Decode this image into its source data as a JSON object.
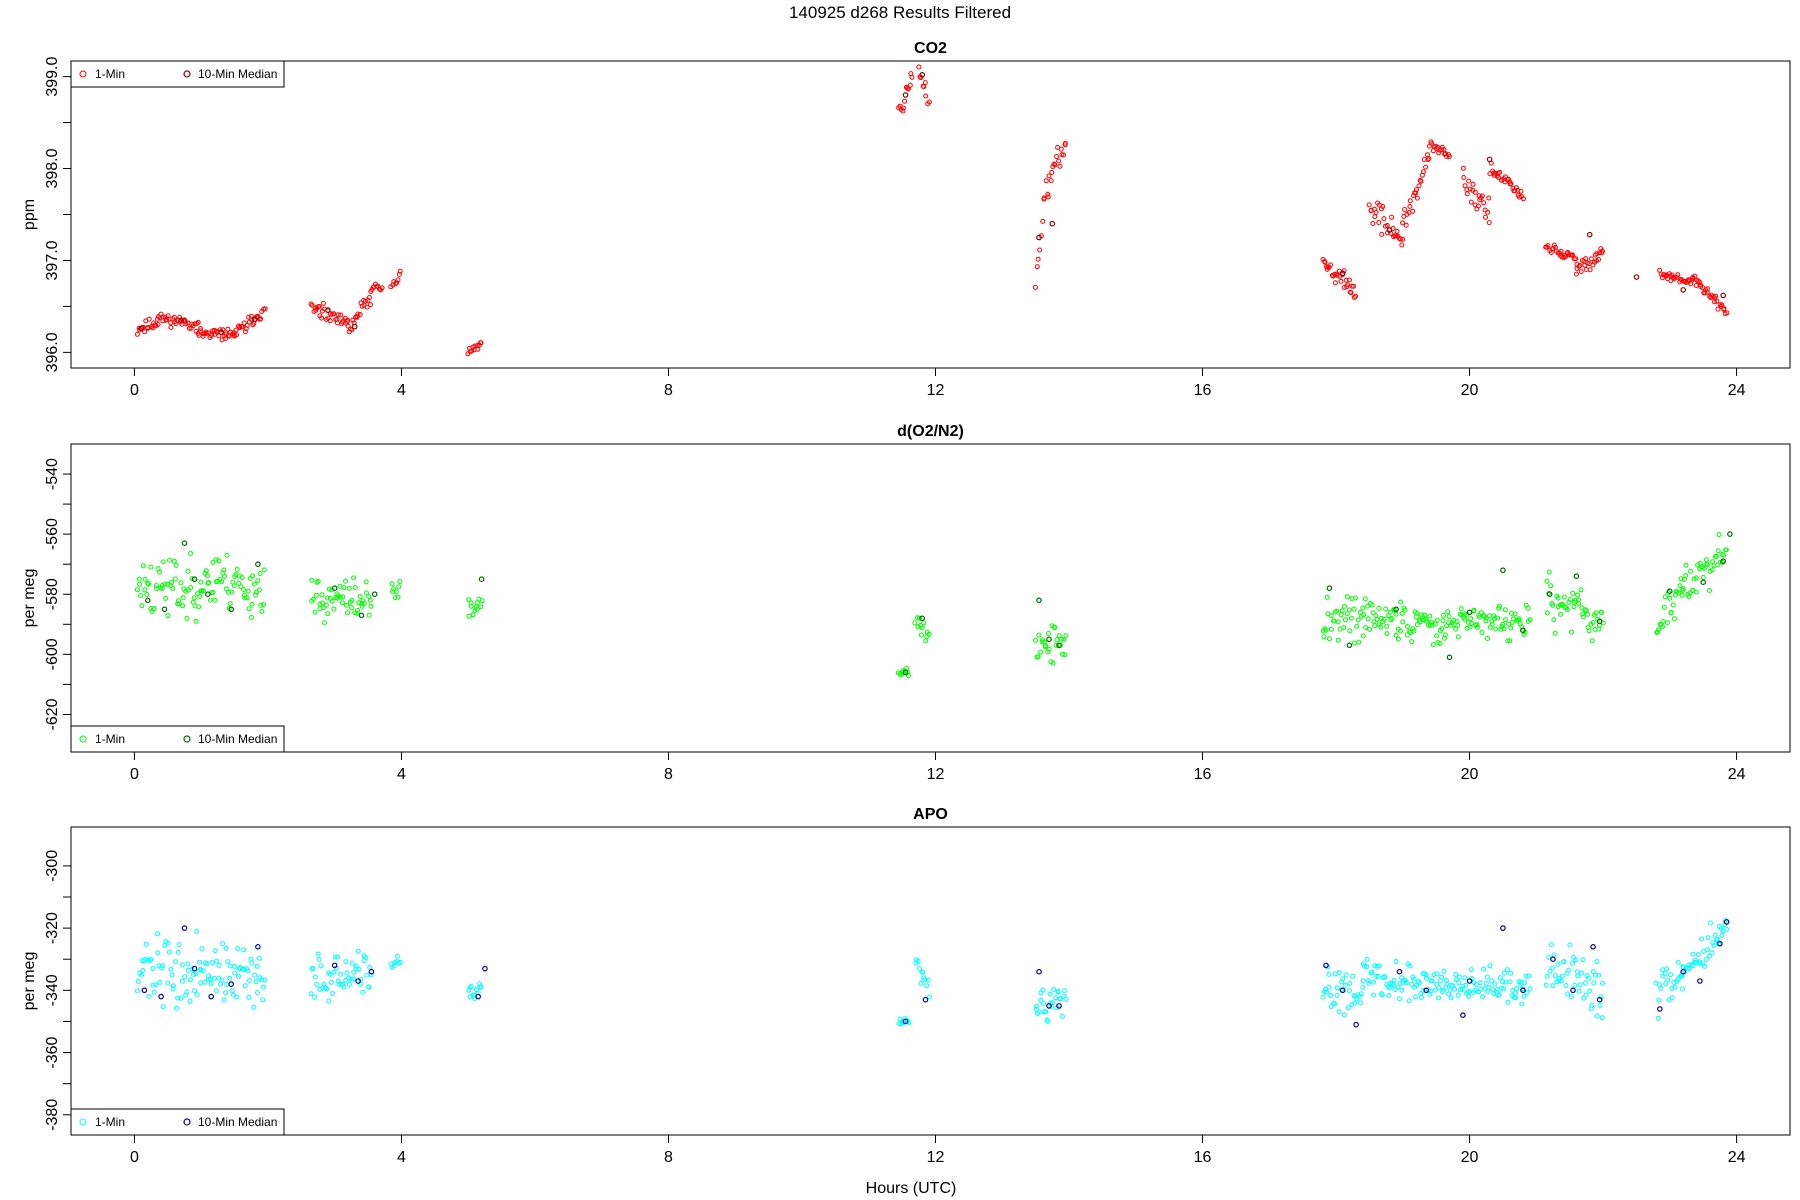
{
  "figure": {
    "title": "140925   d268   Results Filtered",
    "xlabel": "Hours (UTC)"
  },
  "chart_data": [
    {
      "type": "scatter",
      "title": "CO2",
      "ylabel": "ppm",
      "xlim": [
        -0.95,
        24.8
      ],
      "ylim": [
        395.83,
        399.17
      ],
      "xticks": [
        0,
        4,
        8,
        12,
        16,
        20,
        24
      ],
      "yticks": [
        396,
        397,
        398,
        399
      ],
      "ytick_labels": [
        "396.0",
        "397.0",
        "398.0",
        "399.0"
      ],
      "minor_yticks": [
        396.5,
        397.5,
        398.5
      ],
      "legend_position": "top-left",
      "legend": [
        "1-Min",
        "10-Min Median"
      ],
      "colors": {
        "one_min": "#ff0000",
        "median": "#8b0000"
      },
      "series": [
        {
          "name": "1-Min",
          "seed": 11,
          "segments": [
            [
              0.05,
              0.35,
              396.25,
              396.32,
              0.1
            ],
            [
              0.35,
              0.95,
              396.38,
              396.3,
              0.09
            ],
            [
              0.95,
              1.5,
              396.2,
              396.2,
              0.08
            ],
            [
              1.5,
              1.95,
              396.2,
              396.45,
              0.1
            ],
            [
              2.65,
              3.2,
              396.48,
              396.3,
              0.12
            ],
            [
              3.2,
              3.55,
              396.25,
              396.62,
              0.14
            ],
            [
              3.55,
              3.7,
              396.7,
              396.72,
              0.08
            ],
            [
              3.85,
              3.98,
              396.7,
              396.85,
              0.08
            ],
            [
              5.0,
              5.2,
              396.0,
              396.1,
              0.07
            ],
            [
              11.45,
              11.65,
              398.6,
              399.0,
              0.12
            ],
            [
              11.75,
              11.9,
              399.05,
              398.75,
              0.12
            ],
            [
              13.5,
              13.6,
              396.8,
              397.4,
              0.18
            ],
            [
              13.62,
              13.95,
              397.7,
              398.3,
              0.18
            ],
            [
              17.8,
              18.3,
              397.0,
              396.65,
              0.15
            ],
            [
              18.5,
              19.0,
              397.6,
              397.2,
              0.22
            ],
            [
              19.0,
              19.4,
              397.4,
              398.1,
              0.22
            ],
            [
              19.4,
              19.7,
              398.25,
              398.15,
              0.08
            ],
            [
              19.9,
              20.3,
              397.9,
              397.5,
              0.22
            ],
            [
              20.3,
              20.8,
              398.0,
              397.7,
              0.12
            ],
            [
              21.15,
              21.6,
              397.15,
              397.0,
              0.1
            ],
            [
              21.6,
              22.0,
              396.9,
              397.1,
              0.14
            ],
            [
              22.85,
              23.35,
              396.85,
              396.75,
              0.08
            ],
            [
              23.35,
              23.85,
              396.8,
              396.45,
              0.08
            ]
          ]
        },
        {
          "name": "10-Min Median",
          "points": [
            [
              0.1,
              396.26
            ],
            [
              0.7,
              396.35
            ],
            [
              1.3,
              396.22
            ],
            [
              1.8,
              396.36
            ],
            [
              2.9,
              396.46
            ],
            [
              3.3,
              396.28
            ],
            [
              11.55,
              398.8
            ],
            [
              11.8,
              399.02
            ],
            [
              13.55,
              397.25
            ],
            [
              13.75,
              397.4
            ],
            [
              18.1,
              396.86
            ],
            [
              18.8,
              397.33
            ],
            [
              20.3,
              398.1
            ],
            [
              21.8,
              397.28
            ],
            [
              22.5,
              396.82
            ],
            [
              23.2,
              396.68
            ],
            [
              23.8,
              396.62
            ]
          ]
        }
      ]
    },
    {
      "type": "scatter",
      "title": "d(O2/N2)",
      "ylabel": "per meg",
      "xlim": [
        -0.95,
        24.8
      ],
      "ylim": [
        -632.5,
        -530.0
      ],
      "xticks": [
        0,
        4,
        8,
        12,
        16,
        20,
        24
      ],
      "yticks": [
        -620,
        -600,
        -580,
        -560,
        -540
      ],
      "ytick_labels": [
        "-620",
        "-600",
        "-580",
        "-560",
        "-540"
      ],
      "minor_yticks": [
        -610,
        -590,
        -570,
        -550
      ],
      "legend_position": "bottom-left",
      "legend": [
        "1-Min",
        "10-Min Median"
      ],
      "colors": {
        "one_min": "#00ff00",
        "median": "#006400"
      },
      "series": [
        {
          "name": "1-Min",
          "seed": 23,
          "segments": [
            [
              0.05,
              1.0,
              -578,
              -578,
              16
            ],
            [
              1.0,
              1.95,
              -575,
              -578,
              14
            ],
            [
              2.65,
              3.55,
              -582,
              -582,
              10
            ],
            [
              3.85,
              3.98,
              -580,
              -578,
              5
            ],
            [
              5.0,
              5.2,
              -585,
              -582,
              5
            ],
            [
              11.45,
              11.6,
              -606,
              -606,
              2
            ],
            [
              11.7,
              11.9,
              -588,
              -596,
              5
            ],
            [
              13.5,
              13.95,
              -597,
              -597,
              9
            ],
            [
              17.8,
              18.4,
              -588,
              -588,
              12
            ],
            [
              18.4,
              19.6,
              -588,
              -590,
              10
            ],
            [
              19.6,
              20.9,
              -588,
              -590,
              8
            ],
            [
              21.15,
              22.0,
              -582,
              -588,
              14
            ],
            [
              22.8,
              23.2,
              -590,
              -578,
              10
            ],
            [
              23.2,
              23.85,
              -578,
              -566,
              9
            ]
          ]
        },
        {
          "name": "10-Min Median",
          "points": [
            [
              0.2,
              -582
            ],
            [
              0.45,
              -585
            ],
            [
              0.75,
              -563
            ],
            [
              0.9,
              -575
            ],
            [
              1.1,
              -580
            ],
            [
              1.45,
              -585
            ],
            [
              1.85,
              -570
            ],
            [
              3.0,
              -578
            ],
            [
              3.4,
              -587
            ],
            [
              3.6,
              -580
            ],
            [
              5.2,
              -575
            ],
            [
              11.55,
              -606
            ],
            [
              11.8,
              -588
            ],
            [
              13.55,
              -582
            ],
            [
              13.7,
              -595
            ],
            [
              13.85,
              -597
            ],
            [
              17.9,
              -578
            ],
            [
              18.2,
              -597
            ],
            [
              18.9,
              -585
            ],
            [
              19.7,
              -601
            ],
            [
              20.0,
              -586
            ],
            [
              20.5,
              -572
            ],
            [
              20.8,
              -592
            ],
            [
              21.2,
              -580
            ],
            [
              21.6,
              -574
            ],
            [
              21.95,
              -589
            ],
            [
              23.0,
              -579
            ],
            [
              23.5,
              -576
            ],
            [
              23.8,
              -569
            ],
            [
              23.9,
              -560
            ]
          ]
        }
      ]
    },
    {
      "type": "scatter",
      "title": "APO",
      "ylabel": "per meg",
      "xlim": [
        -0.95,
        24.8
      ],
      "ylim": [
        -386.5,
        -287.5
      ],
      "xticks": [
        0,
        4,
        8,
        12,
        16,
        20,
        24
      ],
      "yticks": [
        -380,
        -360,
        -340,
        -320,
        -300
      ],
      "ytick_labels": [
        "-380",
        "-360",
        "-340",
        "-320",
        "-300"
      ],
      "minor_yticks": [
        -370,
        -350,
        -330,
        -310
      ],
      "legend_position": "bottom-left",
      "legend": [
        "1-Min",
        "10-Min Median"
      ],
      "colors": {
        "one_min": "#00ffff",
        "median": "#00008b"
      },
      "series": [
        {
          "name": "1-Min",
          "seed": 37,
          "segments": [
            [
              0.05,
              1.0,
              -333,
              -336,
              16
            ],
            [
              1.0,
              1.95,
              -333,
              -338,
              14
            ],
            [
              2.65,
              3.55,
              -336,
              -336,
              10
            ],
            [
              3.85,
              3.98,
              -333,
              -332,
              5
            ],
            [
              5.0,
              5.2,
              -341,
              -339,
              5
            ],
            [
              11.45,
              11.6,
              -350,
              -350,
              2
            ],
            [
              11.7,
              11.9,
              -331,
              -340,
              5
            ],
            [
              13.5,
              13.95,
              -345,
              -345,
              9
            ],
            [
              17.8,
              18.4,
              -340,
              -338,
              12
            ],
            [
              18.4,
              19.6,
              -336,
              -338,
              10
            ],
            [
              19.6,
              20.9,
              -336,
              -340,
              8
            ],
            [
              21.15,
              22.0,
              -332,
              -340,
              14
            ],
            [
              22.8,
              23.2,
              -342,
              -332,
              10
            ],
            [
              23.2,
              23.85,
              -334,
              -320,
              9
            ]
          ]
        },
        {
          "name": "10-Min Median",
          "points": [
            [
              0.15,
              -340
            ],
            [
              0.4,
              -342
            ],
            [
              0.75,
              -320
            ],
            [
              0.9,
              -333
            ],
            [
              1.15,
              -342
            ],
            [
              1.45,
              -338
            ],
            [
              1.85,
              -326
            ],
            [
              3.0,
              -332
            ],
            [
              3.35,
              -337
            ],
            [
              3.55,
              -334
            ],
            [
              5.15,
              -342
            ],
            [
              5.25,
              -333
            ],
            [
              11.55,
              -350
            ],
            [
              11.85,
              -343
            ],
            [
              13.55,
              -334
            ],
            [
              13.7,
              -345
            ],
            [
              13.85,
              -345
            ],
            [
              17.85,
              -332
            ],
            [
              18.1,
              -340
            ],
            [
              18.3,
              -351
            ],
            [
              18.95,
              -334
            ],
            [
              19.35,
              -340
            ],
            [
              19.9,
              -348
            ],
            [
              20.0,
              -337
            ],
            [
              20.5,
              -320
            ],
            [
              20.8,
              -340
            ],
            [
              21.25,
              -330
            ],
            [
              21.55,
              -340
            ],
            [
              21.85,
              -326
            ],
            [
              21.95,
              -343
            ],
            [
              22.85,
              -346
            ],
            [
              23.2,
              -334
            ],
            [
              23.45,
              -337
            ],
            [
              23.75,
              -325
            ],
            [
              23.85,
              -318
            ]
          ]
        }
      ]
    }
  ]
}
